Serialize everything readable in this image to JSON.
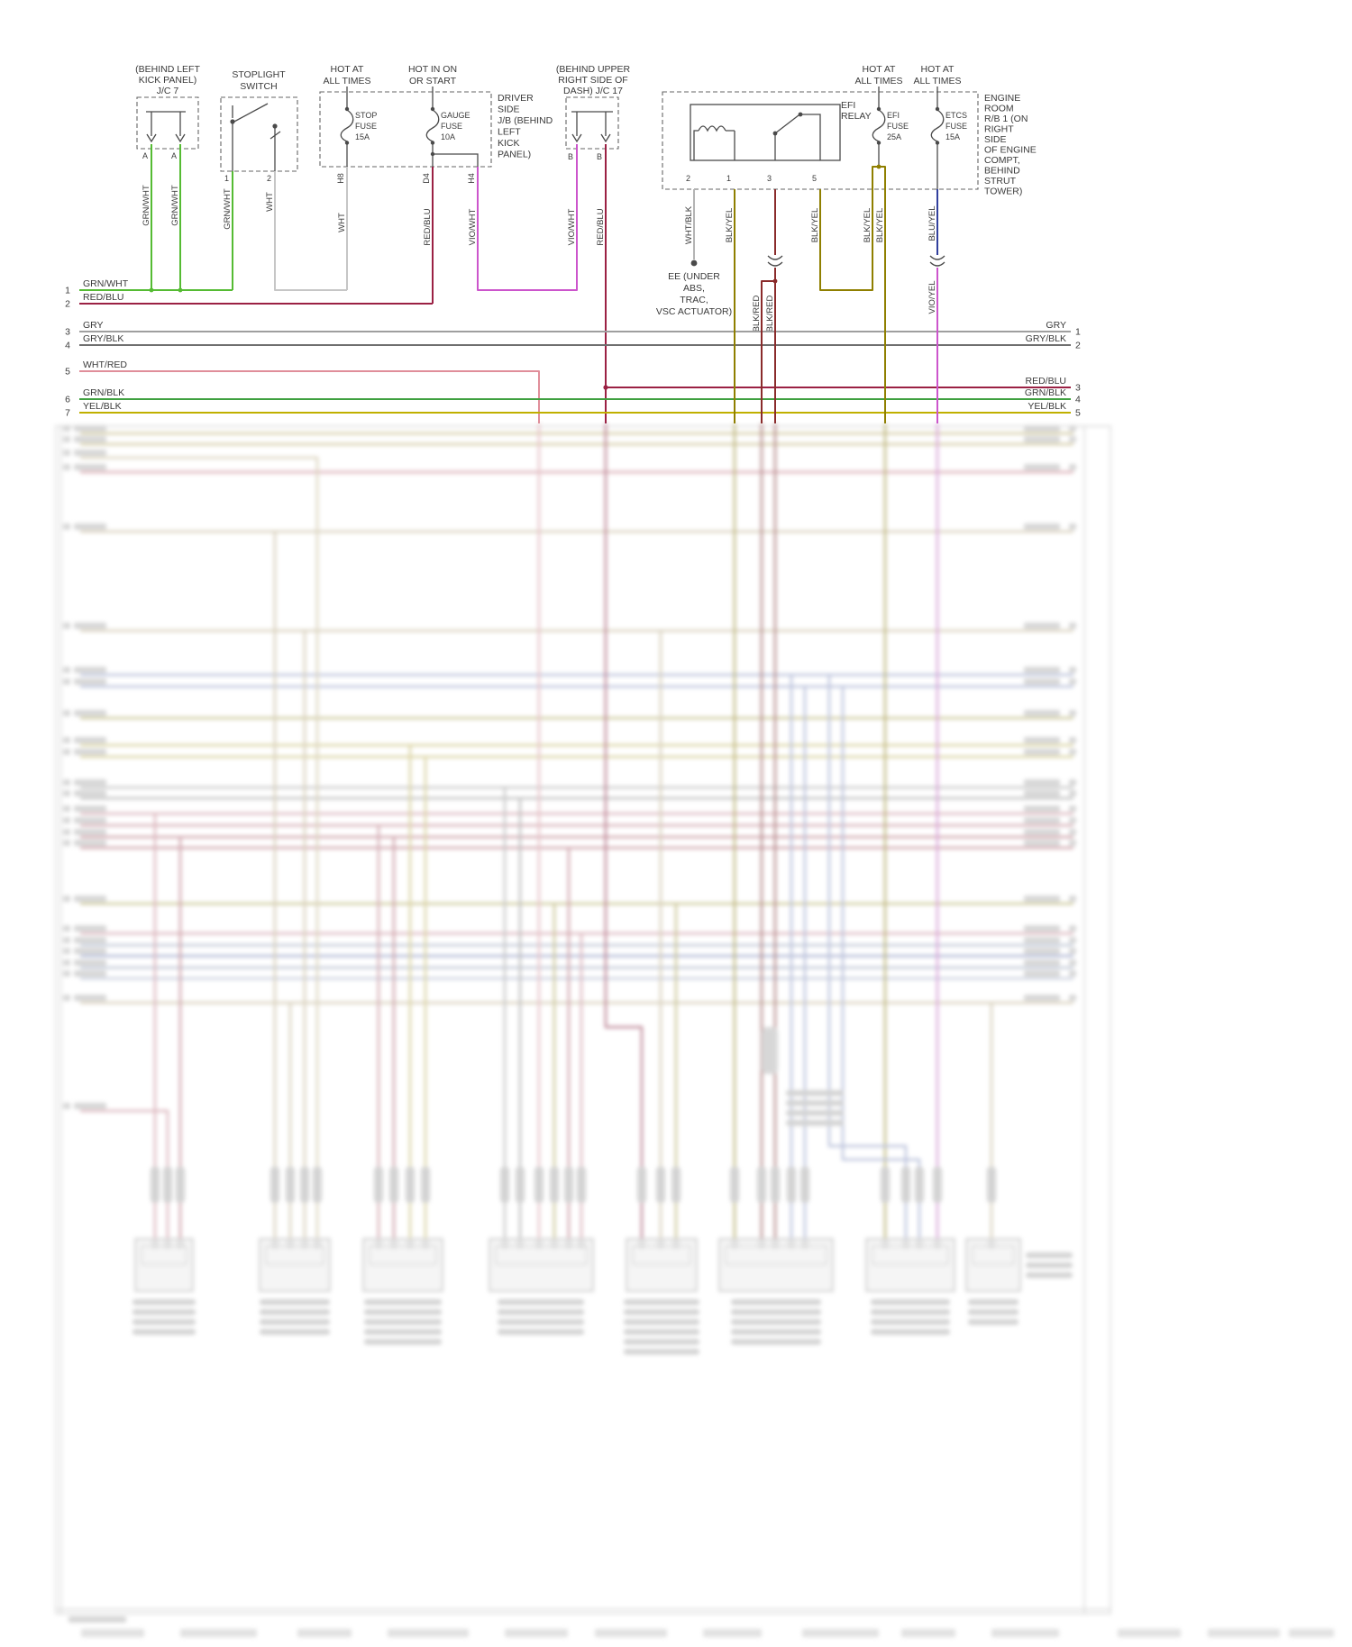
{
  "colors": {
    "GRN/WHT": "#55bb33",
    "WHT": "#c6c6c6",
    "RED/BLU": "#9b2144",
    "VIO/WHT": "#cc55cc",
    "WHT/BLK": "#b4b4b4",
    "BLK/YEL": "#8f7f00",
    "BLK/RED": "#8a2b2b",
    "BLU/YEL": "#31409d",
    "VIO/YEL": "#cc55cc",
    "GRY": "#9f9f9f",
    "GRY/BLK": "#6f6f6f",
    "WHT/RED": "#e08e9a",
    "GRN/BLK": "#3fa040",
    "YEL/BLK": "#c0b000"
  },
  "jc7": {
    "caption": [
      "(BEHIND LEFT",
      "KICK PANEL)",
      "J/C 7"
    ],
    "pins": [
      "A",
      "A"
    ],
    "wires": [
      "GRN/WHT",
      "GRN/WHT"
    ]
  },
  "stoplight_switch": {
    "title": [
      "STOPLIGHT",
      "SWITCH"
    ],
    "pins": [
      "1",
      "2"
    ],
    "wires": [
      "GRN/WHT",
      "WHT"
    ]
  },
  "driver_jb": {
    "header_left": [
      "HOT AT",
      "ALL TIMES"
    ],
    "header_right": [
      "HOT IN ON",
      "OR START"
    ],
    "stop_fuse": [
      "STOP",
      "FUSE",
      "15A"
    ],
    "gauge_fuse": [
      "GAUGE",
      "FUSE",
      "10A"
    ],
    "side_label": [
      "DRIVER",
      "SIDE",
      "J/B (BEHIND",
      "LEFT",
      "KICK",
      "PANEL)"
    ],
    "pins": [
      "H8",
      "D4",
      "H4"
    ],
    "wires": [
      "WHT",
      "RED/BLU",
      "VIO/WHT"
    ]
  },
  "jc17": {
    "caption": [
      "(BEHIND UPPER",
      "RIGHT SIDE OF",
      "DASH) J/C 17"
    ],
    "pins": [
      "B",
      "B"
    ],
    "wires": [
      "VIO/WHT",
      "RED/BLU"
    ]
  },
  "efi_relay": {
    "label": [
      "EFI",
      "RELAY"
    ],
    "pins": [
      "2",
      "1",
      "3",
      "5"
    ],
    "wires": [
      "WHT/BLK",
      "BLK/YEL",
      "BLK/RED",
      "BLK/YEL"
    ],
    "branch_wires": [
      "BLK/RED",
      "BLK/RED"
    ]
  },
  "engine_room": {
    "header_left": [
      "HOT AT",
      "ALL TIMES"
    ],
    "header_right": [
      "HOT AT",
      "ALL TIMES"
    ],
    "efi_fuse": [
      "EFI",
      "FUSE",
      "25A"
    ],
    "etcs_fuse": [
      "ETCS",
      "FUSE",
      "15A"
    ],
    "side_label": [
      "ENGINE",
      "ROOM",
      "R/B 1 (ON",
      "RIGHT",
      "SIDE",
      "OF ENGINE",
      "COMPT,",
      "BEHIND",
      "STRUT",
      "TOWER)"
    ],
    "efi_fuse_wires": [
      "BLK/YEL",
      "BLK/YEL"
    ],
    "etcs_fuse_wire": "BLU/YEL",
    "etcs_wire_below": "VIO/YEL"
  },
  "ground": {
    "label": [
      "EE (UNDER",
      "ABS,",
      "TRAC,",
      "VSC ACTUATOR)"
    ]
  },
  "left_rows": [
    {
      "n": "1",
      "label": "GRN/WHT"
    },
    {
      "n": "2",
      "label": "RED/BLU"
    },
    {
      "n": "3",
      "label": "GRY"
    },
    {
      "n": "4",
      "label": "GRY/BLK"
    },
    {
      "n": "5",
      "label": "WHT/RED"
    },
    {
      "n": "6",
      "label": "GRN/BLK"
    },
    {
      "n": "7",
      "label": "YEL/BLK"
    }
  ],
  "right_rows": [
    {
      "label": "GRY",
      "n": "1"
    },
    {
      "label": "GRY/BLK",
      "n": "2"
    },
    {
      "label": "RED/BLU",
      "n": "3"
    },
    {
      "label": "GRN/BLK",
      "n": "4"
    },
    {
      "label": "YEL/BLK",
      "n": "5"
    }
  ]
}
